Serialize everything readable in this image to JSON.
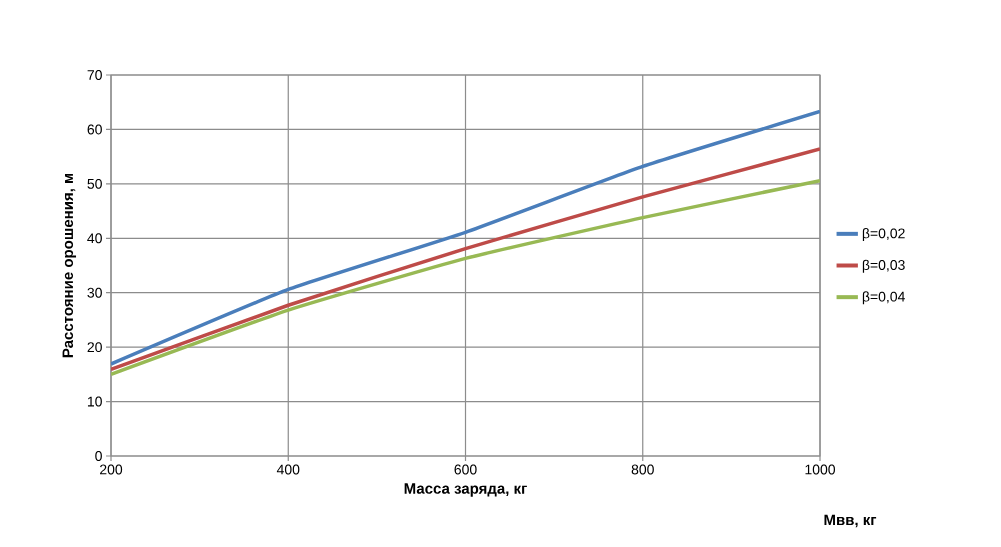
{
  "chart_data": {
    "type": "line",
    "xlabel": "Масса заряда,  кг",
    "ylabel": "Расстояние орошения, м",
    "annotations": [
      "Мвв, кг"
    ],
    "x": [
      200,
      400,
      600,
      800,
      1000
    ],
    "series": [
      {
        "name": "β=0,02",
        "color": "#4a7ebb",
        "values": [
          16.9,
          30.6,
          41.1,
          53.2,
          63.3
        ]
      },
      {
        "name": "β=0,03",
        "color": "#be4b48",
        "values": [
          15.9,
          27.7,
          38.1,
          47.6,
          56.4
        ]
      },
      {
        "name": "β=0,04",
        "color": "#98b954",
        "values": [
          15.0,
          26.8,
          36.3,
          43.8,
          50.6
        ]
      }
    ],
    "xlim": [
      200,
      1000
    ],
    "xticks": [
      200,
      400,
      600,
      800,
      1000
    ],
    "ylim": [
      0,
      70
    ],
    "yticks": [
      0,
      10,
      20,
      30,
      40,
      50,
      60,
      70
    ],
    "grid": true,
    "legend": "right",
    "marker": "none",
    "line_style": "solid"
  }
}
